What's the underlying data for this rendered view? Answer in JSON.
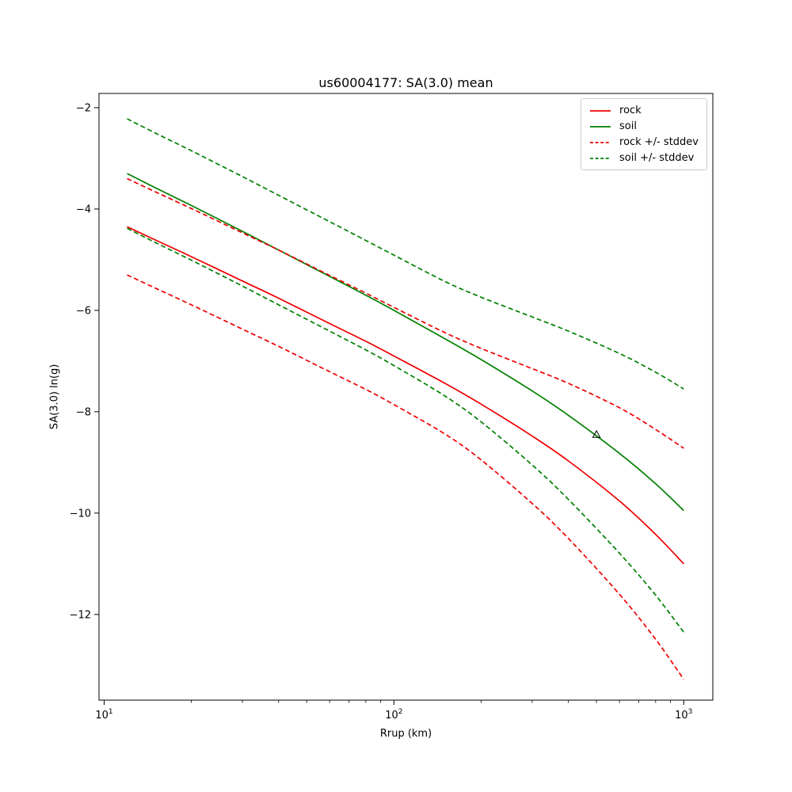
{
  "figure": {
    "title": "us60004177: SA(3.0) mean"
  },
  "chart_data": {
    "type": "line",
    "title": "us60004177: SA(3.0) mean",
    "xlabel": "Rrup (km)",
    "ylabel": "SA(3.0) ln(g)",
    "xscale": "log",
    "grid": false,
    "xlim": [
      9.6,
      1260
    ],
    "ylim": [
      -13.69,
      -1.72
    ],
    "xticks": [
      10,
      100,
      1000
    ],
    "yticks": [
      -2,
      -4,
      -6,
      -8,
      -10,
      -12
    ],
    "x": [
      12,
      15,
      20,
      30,
      40,
      60,
      80,
      100,
      150,
      200,
      300,
      400,
      600,
      800,
      1000
    ],
    "series": [
      {
        "key": "rock-mean-line",
        "name": "rock",
        "color": "#ee0000",
        "style": "solid",
        "values": [
          -4.35,
          -4.61,
          -4.94,
          -5.42,
          -5.76,
          -6.26,
          -6.61,
          -6.9,
          -7.44,
          -7.85,
          -8.48,
          -8.97,
          -9.76,
          -10.42,
          -11.0
        ]
      },
      {
        "key": "soil-mean-line",
        "name": "soil",
        "color": "#008000",
        "style": "solid",
        "values": [
          -3.3,
          -3.58,
          -3.93,
          -4.44,
          -4.81,
          -5.33,
          -5.7,
          -6.0,
          -6.56,
          -6.97,
          -7.59,
          -8.07,
          -8.82,
          -9.42,
          -9.95
        ]
      },
      {
        "key": "rock-upper-stddev-line",
        "name": "rock + stddev",
        "color": "#ee0000",
        "style": "dashed",
        "values": [
          -3.4,
          -3.66,
          -3.99,
          -4.47,
          -4.81,
          -5.31,
          -5.66,
          -5.94,
          -6.44,
          -6.75,
          -7.15,
          -7.44,
          -7.92,
          -8.35,
          -8.72
        ]
      },
      {
        "key": "rock-lower-stddev-line",
        "name": "rock - stddev",
        "color": "#ee0000",
        "style": "dashed",
        "values": [
          -5.3,
          -5.56,
          -5.89,
          -6.37,
          -6.71,
          -7.21,
          -7.56,
          -7.86,
          -8.44,
          -8.95,
          -9.81,
          -10.5,
          -11.6,
          -12.49,
          -13.28
        ]
      },
      {
        "key": "soil-upper-stddev-line",
        "name": "soil + stddev",
        "color": "#008000",
        "style": "dashed",
        "values": [
          -2.22,
          -2.5,
          -2.85,
          -3.36,
          -3.73,
          -4.25,
          -4.62,
          -4.91,
          -5.43,
          -5.74,
          -6.13,
          -6.41,
          -6.85,
          -7.22,
          -7.55
        ]
      },
      {
        "key": "soil-lower-stddev-line",
        "name": "soil - stddev",
        "color": "#008000",
        "style": "dashed",
        "values": [
          -4.38,
          -4.66,
          -5.01,
          -5.52,
          -5.89,
          -6.41,
          -6.78,
          -7.09,
          -7.69,
          -8.2,
          -9.05,
          -9.73,
          -10.79,
          -11.62,
          -12.35
        ]
      }
    ],
    "marker": {
      "shape": "triangle-up",
      "x": 500,
      "y": -8.45,
      "edge_color": "#000000",
      "fill": "none"
    },
    "legend": {
      "position": "upper right",
      "entries": [
        {
          "label": "rock",
          "color": "#ee0000",
          "dash": "none"
        },
        {
          "label": "soil",
          "color": "#008000",
          "dash": "none"
        },
        {
          "label": "rock +/- stddev",
          "color": "#ee0000",
          "dash": "4 2.6"
        },
        {
          "label": "soil +/- stddev",
          "color": "#008000",
          "dash": "4 2.6"
        }
      ]
    }
  }
}
